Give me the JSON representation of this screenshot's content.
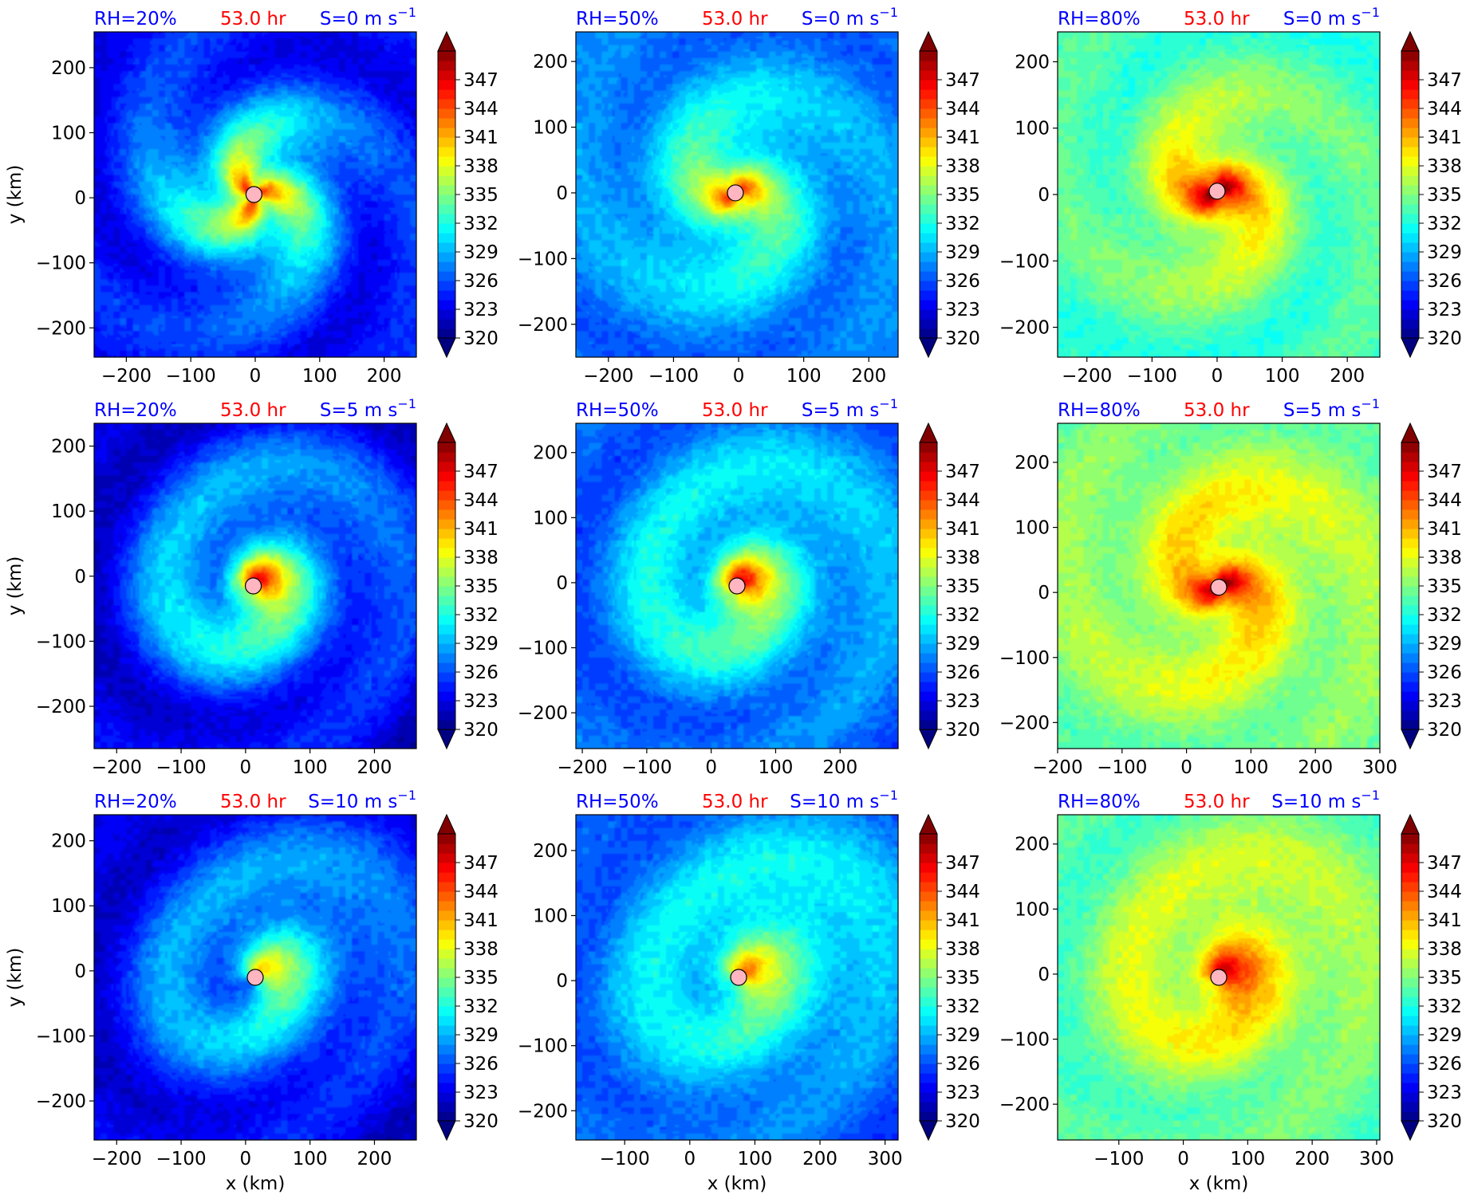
{
  "figure": {
    "colorbar": {
      "ticks": [
        320,
        323,
        326,
        329,
        332,
        335,
        338,
        341,
        344,
        347
      ],
      "vmin": 320,
      "vmax": 350,
      "levels": 30,
      "extend": "both",
      "colormap": "jet"
    },
    "colors": {
      "rh_label": "#0000ff",
      "time_label": "#ff0000",
      "shear_label": "#0000ff",
      "center_marker": "#ffb6c1"
    },
    "xlabel": "x (km)",
    "ylabel": "y (km)"
  },
  "chart_data": [
    {
      "type": "heatmap",
      "rh": "RH=20%",
      "time": "53.0 hr",
      "shear": "S=0 m s",
      "shear_unit_exp": "−1",
      "xlim": [
        -250,
        250
      ],
      "ylim": [
        -245,
        255
      ],
      "xticks": [
        -200,
        -100,
        0,
        100,
        200
      ],
      "yticks": [
        -200,
        -100,
        0,
        100,
        200
      ],
      "center": [
        -2,
        5
      ],
      "background": 324,
      "core_peak": 336,
      "core_radius": 95,
      "eye_peak": 342,
      "spiral_strength": 4,
      "spiral_arms": 3,
      "shear_tilt": 0
    },
    {
      "type": "heatmap",
      "rh": "RH=50%",
      "time": "53.0 hr",
      "shear": "S=0 m s",
      "shear_unit_exp": "−1",
      "xlim": [
        -250,
        245
      ],
      "ylim": [
        -250,
        245
      ],
      "xticks": [
        -200,
        -100,
        0,
        100,
        200
      ],
      "yticks": [
        -200,
        -100,
        0,
        100,
        200
      ],
      "center": [
        -5,
        0
      ],
      "background": 327,
      "core_peak": 334,
      "core_radius": 110,
      "eye_peak": 343,
      "spiral_strength": 3,
      "spiral_arms": 2,
      "shear_tilt": 0
    },
    {
      "type": "heatmap",
      "rh": "RH=80%",
      "time": "53.0 hr",
      "shear": "S=0 m s",
      "shear_unit_exp": "−1",
      "xlim": [
        -245,
        250
      ],
      "ylim": [
        -245,
        245
      ],
      "xticks": [
        -200,
        -100,
        0,
        100,
        200
      ],
      "yticks": [
        -200,
        -100,
        0,
        100,
        200
      ],
      "center": [
        0,
        5
      ],
      "background": 333,
      "core_peak": 339,
      "core_radius": 100,
      "eye_peak": 348,
      "spiral_strength": 3,
      "spiral_arms": 2,
      "shear_tilt": 0
    },
    {
      "type": "heatmap",
      "rh": "RH=20%",
      "time": "53.0 hr",
      "shear": "S=5 m s",
      "shear_unit_exp": "−1",
      "xlim": [
        -235,
        265
      ],
      "ylim": [
        -265,
        235
      ],
      "xticks": [
        -200,
        -100,
        0,
        100,
        200
      ],
      "yticks": [
        -200,
        -100,
        0,
        100,
        200
      ],
      "center": [
        12,
        -15
      ],
      "background": 322,
      "core_peak": 332,
      "core_radius": 140,
      "eye_peak": 342,
      "spiral_strength": 5,
      "spiral_arms": 1,
      "shear_tilt": 0.5
    },
    {
      "type": "heatmap",
      "rh": "RH=50%",
      "time": "53.0 hr",
      "shear": "S=5 m s",
      "shear_unit_exp": "−1",
      "xlim": [
        -210,
        290
      ],
      "ylim": [
        -255,
        245
      ],
      "xticks": [
        -200,
        -100,
        0,
        100,
        200
      ],
      "yticks": [
        -200,
        -100,
        0,
        100,
        200
      ],
      "center": [
        40,
        -5
      ],
      "background": 326,
      "core_peak": 333,
      "core_radius": 140,
      "eye_peak": 343,
      "spiral_strength": 4,
      "spiral_arms": 1,
      "shear_tilt": 0.5
    },
    {
      "type": "heatmap",
      "rh": "RH=80%",
      "time": "53.0 hr",
      "shear": "S=5 m s",
      "shear_unit_exp": "−1",
      "xlim": [
        -200,
        300
      ],
      "ylim": [
        -240,
        260
      ],
      "xticks": [
        -200,
        -100,
        0,
        100,
        200,
        300
      ],
      "yticks": [
        -200,
        -100,
        0,
        100,
        200
      ],
      "center": [
        50,
        8
      ],
      "background": 334,
      "core_peak": 339,
      "core_radius": 150,
      "eye_peak": 347,
      "spiral_strength": 3,
      "spiral_arms": 2,
      "shear_tilt": 0.3
    },
    {
      "type": "heatmap",
      "rh": "RH=20%",
      "time": "53.0 hr",
      "shear": "S=10 m s",
      "shear_unit_exp": "−1",
      "xlim": [
        -235,
        265
      ],
      "ylim": [
        -260,
        240
      ],
      "xticks": [
        -200,
        -100,
        0,
        100,
        200
      ],
      "yticks": [
        -200,
        -100,
        0,
        100,
        200
      ],
      "center": [
        15,
        -10
      ],
      "background": 322,
      "core_peak": 331,
      "core_radius": 150,
      "eye_peak": 334,
      "spiral_strength": 4,
      "spiral_arms": 1,
      "shear_tilt": 1
    },
    {
      "type": "heatmap",
      "rh": "RH=50%",
      "time": "53.0 hr",
      "shear": "S=10 m s",
      "shear_unit_exp": "−1",
      "xlim": [
        -175,
        320
      ],
      "ylim": [
        -245,
        255
      ],
      "xticks": [
        -100,
        0,
        100,
        200,
        300
      ],
      "yticks": [
        -200,
        -100,
        0,
        100,
        200
      ],
      "center": [
        75,
        5
      ],
      "background": 325,
      "core_peak": 333,
      "core_radius": 170,
      "eye_peak": 338,
      "spiral_strength": 3,
      "spiral_arms": 1,
      "shear_tilt": 1
    },
    {
      "type": "heatmap",
      "rh": "RH=80%",
      "time": "53.0 hr",
      "shear": "S=10 m s",
      "shear_unit_exp": "−1",
      "xlim": [
        -195,
        305
      ],
      "ylim": [
        -255,
        245
      ],
      "xticks": [
        -100,
        0,
        100,
        200,
        300
      ],
      "yticks": [
        -200,
        -100,
        0,
        100,
        200
      ],
      "center": [
        55,
        -5
      ],
      "background": 333,
      "core_peak": 339,
      "core_radius": 150,
      "eye_peak": 344,
      "spiral_strength": 3,
      "spiral_arms": 1,
      "shear_tilt": 0.6
    }
  ]
}
